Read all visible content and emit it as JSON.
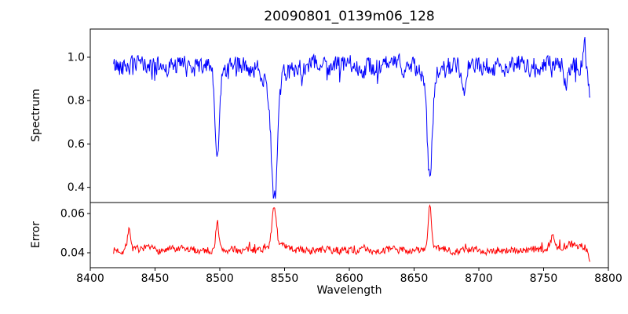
{
  "figure": {
    "title": "20090801_0139m06_128",
    "xlabel": "Wavelength",
    "background_color": "#ffffff",
    "frame_color": "#000000"
  },
  "chart_data": [
    {
      "type": "line",
      "name": "spectrum",
      "ylabel": "Spectrum",
      "color": "#0000ff",
      "legend": "none",
      "grid": false,
      "xlim": [
        8400,
        8800
      ],
      "ylim": [
        0.33,
        1.13
      ],
      "xticks": [
        8400,
        8450,
        8500,
        8550,
        8600,
        8650,
        8700,
        8750,
        8800
      ],
      "xtick_labels": [
        "8400",
        "8450",
        "8500",
        "8550",
        "8600",
        "8650",
        "8700",
        "8750",
        "8800"
      ],
      "show_xtick_labels": false,
      "yticks": [
        0.4,
        0.6,
        0.8,
        1.0
      ],
      "ytick_labels": [
        "0.4",
        "0.6",
        "0.8",
        "1.0"
      ],
      "series": {
        "x_start": 8418,
        "x_end": 8786,
        "n_points": 720,
        "baseline": 0.96,
        "noise_amplitude": 0.05,
        "spike_probability": 0.05,
        "spike_sign": -1,
        "seed": 42,
        "features": [
          {
            "type": "dip",
            "center": 8498.0,
            "depth": 0.38,
            "width": 1.6
          },
          {
            "type": "dip",
            "center": 8498.0,
            "depth": 0.05,
            "width": 4.0
          },
          {
            "type": "dip",
            "center": 8542.1,
            "depth": 0.53,
            "width": 2.4
          },
          {
            "type": "dip",
            "center": 8542.1,
            "depth": 0.07,
            "width": 8.0
          },
          {
            "type": "dip",
            "center": 8662.1,
            "depth": 0.47,
            "width": 2.0
          },
          {
            "type": "dip",
            "center": 8662.1,
            "depth": 0.05,
            "width": 6.0
          },
          {
            "type": "dip",
            "center": 8688.0,
            "depth": 0.16,
            "width": 1.4
          },
          {
            "type": "dip",
            "center": 8767.0,
            "depth": 0.1,
            "width": 1.2
          },
          {
            "type": "peak",
            "center": 8781.5,
            "depth": 0.13,
            "width": 1.0
          },
          {
            "type": "dip",
            "center": 8786.0,
            "depth": 0.14,
            "width": 1.4
          }
        ]
      }
    },
    {
      "type": "line",
      "name": "error",
      "ylabel": "Error",
      "color": "#ff0000",
      "legend": "none",
      "grid": false,
      "xlim": [
        8400,
        8800
      ],
      "ylim": [
        0.0324,
        0.0656
      ],
      "xticks": [
        8400,
        8450,
        8500,
        8550,
        8600,
        8650,
        8700,
        8750,
        8800
      ],
      "xtick_labels": [
        "8400",
        "8450",
        "8500",
        "8550",
        "8600",
        "8650",
        "8700",
        "8750",
        "8800"
      ],
      "show_xtick_labels": true,
      "yticks": [
        0.04,
        0.06
      ],
      "ytick_labels": [
        "0.04",
        "0.06"
      ],
      "series": {
        "x_start": 8418,
        "x_end": 8786,
        "n_points": 720,
        "baseline": 0.0413,
        "noise_amplitude": 0.0022,
        "spike_probability": 0.05,
        "spike_sign": 1,
        "seed": 7,
        "features": [
          {
            "type": "peak",
            "center": 8430.0,
            "depth": 0.01,
            "width": 1.4
          },
          {
            "type": "peak",
            "center": 8498.0,
            "depth": 0.015,
            "width": 1.2
          },
          {
            "type": "peak",
            "center": 8542.1,
            "depth": 0.019,
            "width": 1.6
          },
          {
            "type": "peak",
            "center": 8542.1,
            "depth": 0.003,
            "width": 6.0
          },
          {
            "type": "peak",
            "center": 8662.1,
            "depth": 0.023,
            "width": 1.3
          },
          {
            "type": "peak",
            "center": 8757.0,
            "depth": 0.007,
            "width": 1.2
          },
          {
            "type": "peak",
            "center": 8772.0,
            "depth": 0.003,
            "width": 10.0
          },
          {
            "type": "dip",
            "center": 8786.0,
            "depth": 0.007,
            "width": 1.5
          }
        ]
      }
    }
  ]
}
